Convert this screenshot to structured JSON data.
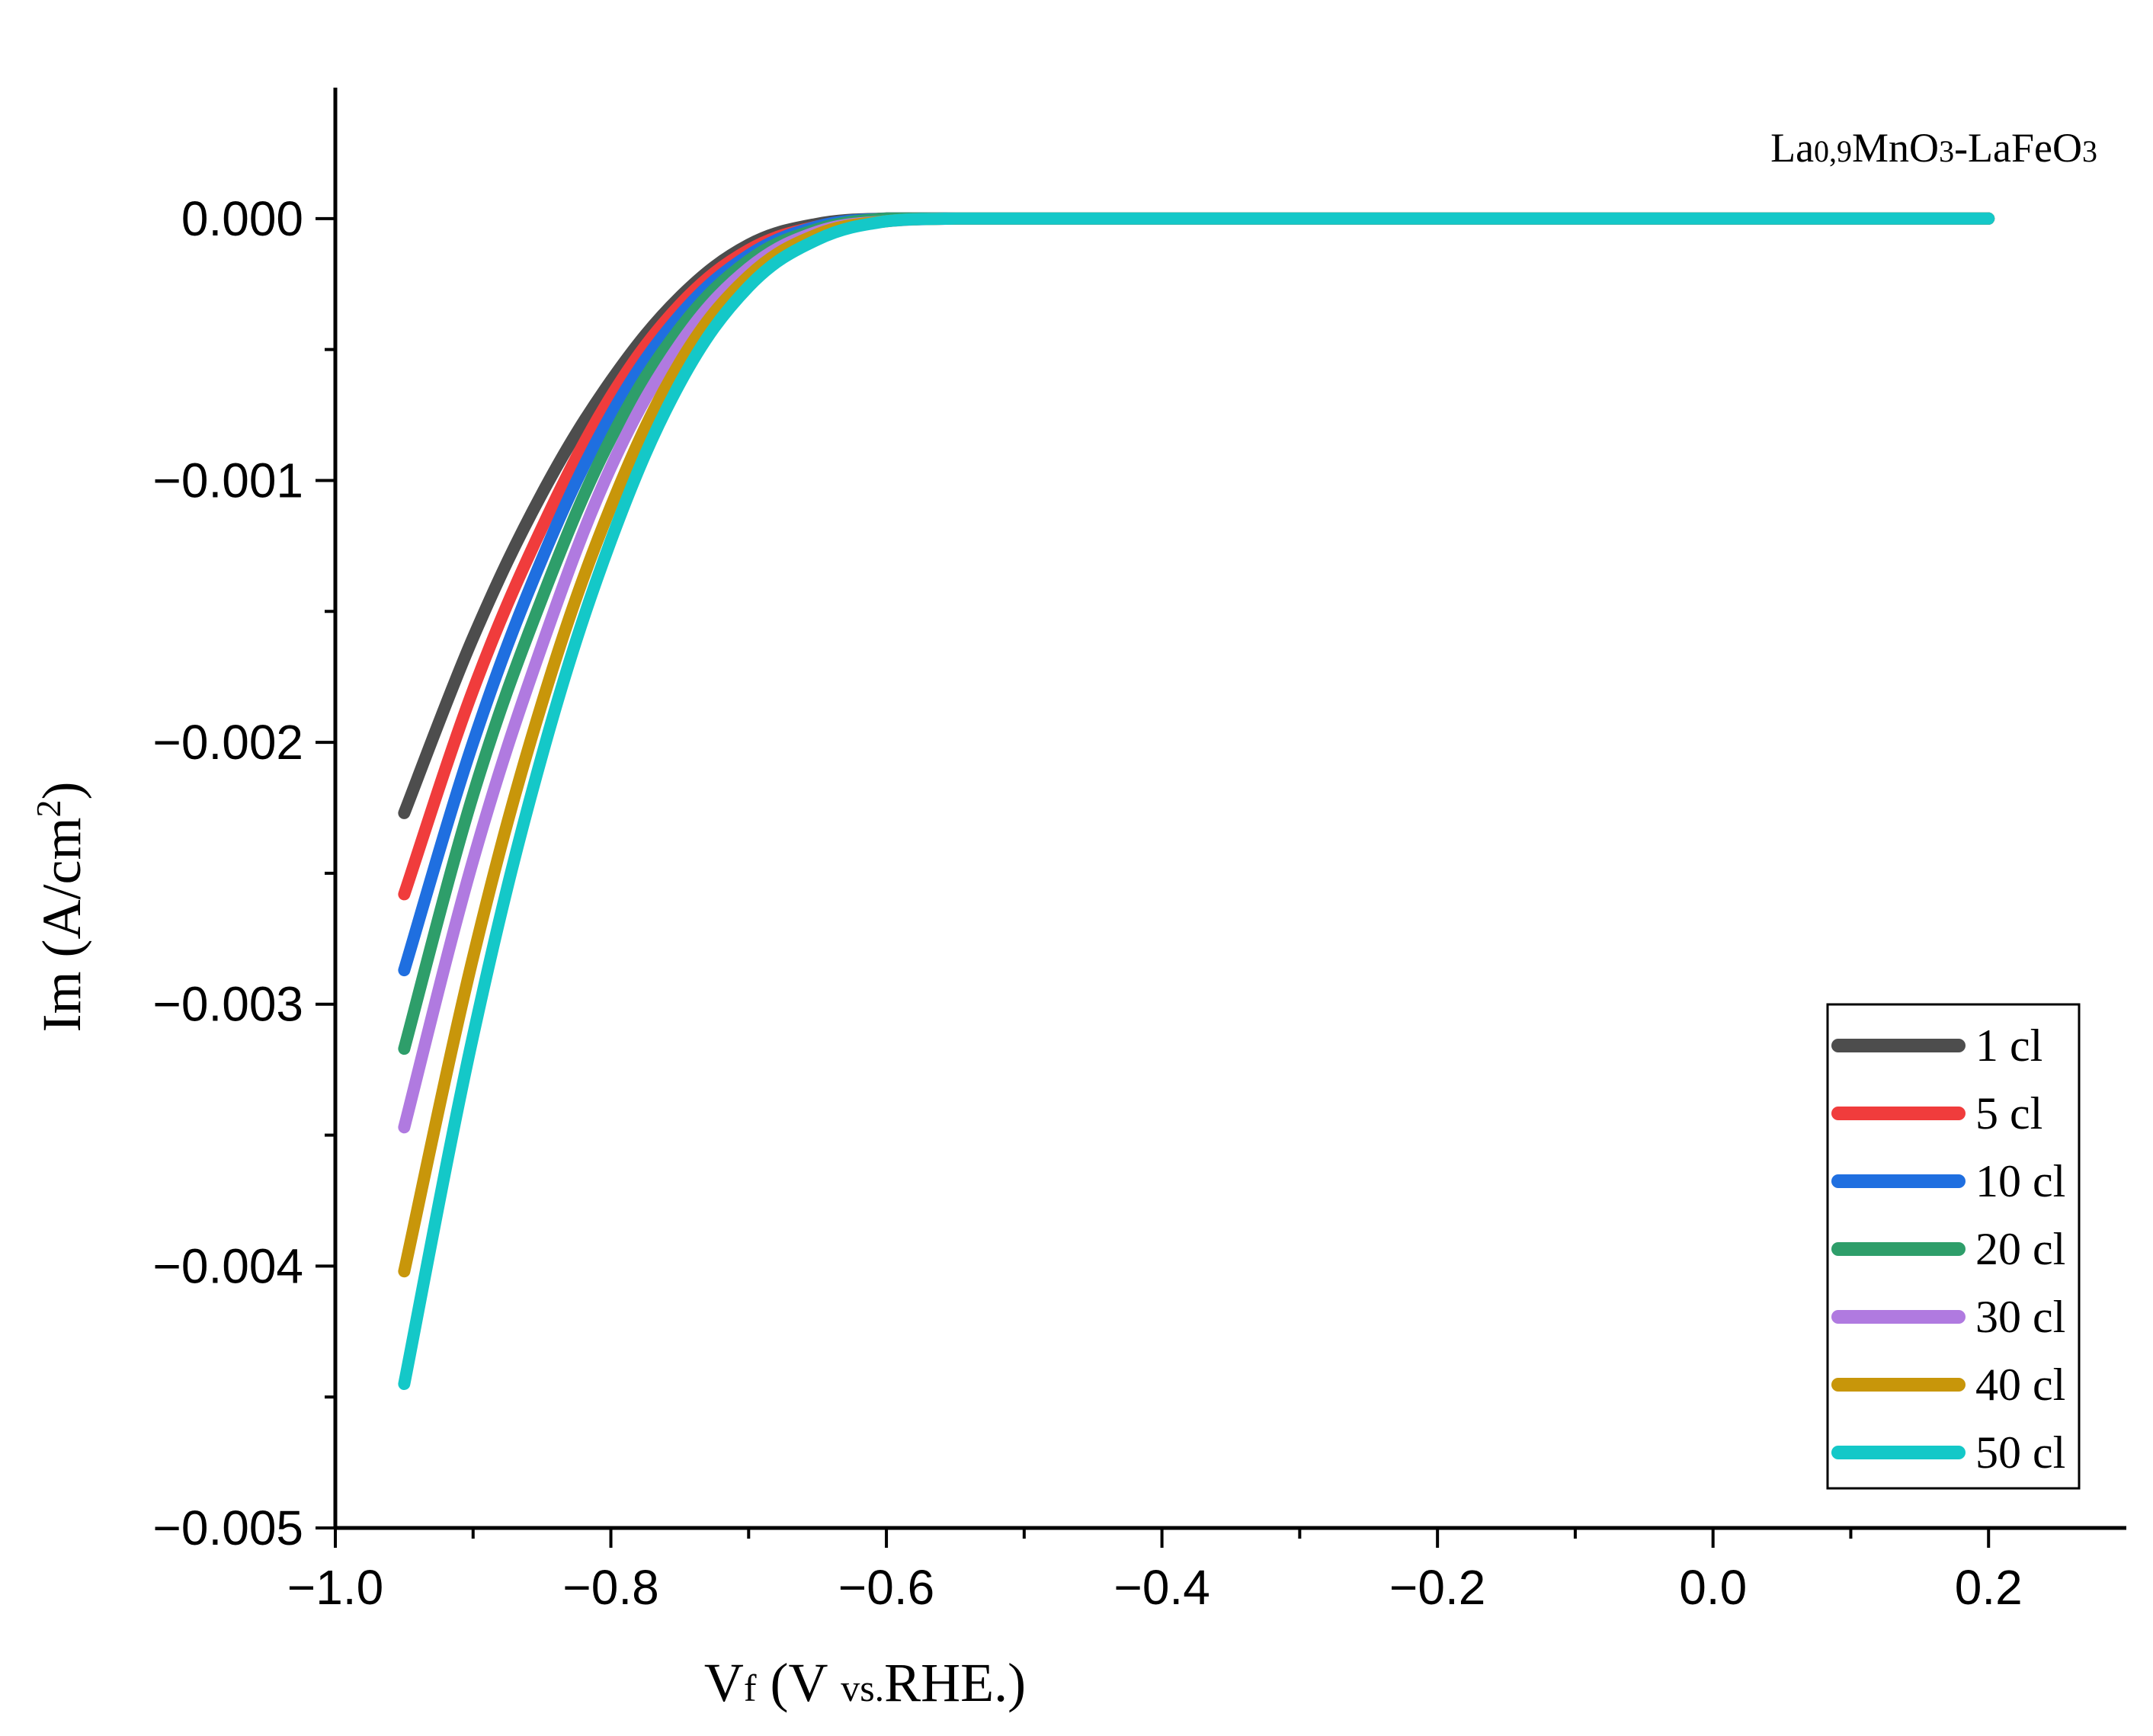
{
  "chart_data": {
    "type": "line",
    "xlabel": {
      "main": "V",
      "sub": "f",
      "paren_open": " (V ",
      "paren_sub": "vs.",
      "paren_rest": "RHE.)"
    },
    "ylabel": {
      "main": "Im (A/cm",
      "sup": "2",
      "close": ")"
    },
    "annotation": {
      "p1": "La",
      "s1": "0,9",
      "p2": "MnO",
      "s2": "3",
      "p3": "-LaFeO",
      "s3": "3"
    },
    "xlim": [
      -1.0,
      0.3
    ],
    "ylim": [
      -0.005,
      0.0005
    ],
    "xticks": [
      -1.0,
      -0.8,
      -0.6,
      -0.4,
      -0.2,
      0.0,
      0.2
    ],
    "xtick_labels": [
      "−1.0",
      "−0.8",
      "−0.6",
      "−0.4",
      "−0.2",
      "0.0",
      "0.2"
    ],
    "yticks": [
      0.0,
      -0.001,
      -0.002,
      -0.003,
      -0.004,
      -0.005
    ],
    "ytick_labels": [
      "0.000",
      "−0.001",
      "−0.002",
      "−0.003",
      "−0.004",
      "−0.005"
    ],
    "x": [
      -0.95,
      -0.9,
      -0.85,
      -0.8,
      -0.75,
      -0.7,
      -0.65,
      -0.6,
      -0.55,
      -0.5,
      -0.4,
      -0.2,
      0.0,
      0.2
    ],
    "series": [
      {
        "name": "1 cl",
        "color": "#4d4d4d",
        "values": [
          -0.00227,
          -0.0016,
          -0.00105,
          -0.00062,
          -0.0003,
          -0.0001,
          -2e-05,
          0.0,
          0.0,
          0.0,
          0.0,
          0.0,
          0.0,
          0.0
        ]
      },
      {
        "name": "5 cl",
        "color": "#f03c3c",
        "values": [
          -0.00258,
          -0.0018,
          -0.00118,
          -0.00068,
          -0.00033,
          -0.00012,
          -3e-05,
          0.0,
          0.0,
          0.0,
          0.0,
          0.0,
          0.0,
          0.0
        ]
      },
      {
        "name": "10 cl",
        "color": "#1f6fe0",
        "values": [
          -0.00287,
          -0.002,
          -0.0013,
          -0.00075,
          -0.00037,
          -0.00014,
          -3e-05,
          0.0,
          0.0,
          0.0,
          0.0,
          0.0,
          0.0,
          0.0
        ]
      },
      {
        "name": "20 cl",
        "color": "#2e9e6a",
        "values": [
          -0.00317,
          -0.0022,
          -0.00145,
          -0.00084,
          -0.00042,
          -0.00016,
          -4e-05,
          0.0,
          0.0,
          0.0,
          0.0,
          0.0,
          0.0,
          0.0
        ]
      },
      {
        "name": "30 cl",
        "color": "#b07ae0",
        "values": [
          -0.00347,
          -0.00245,
          -0.00163,
          -0.00095,
          -0.00048,
          -0.00019,
          -5e-05,
          -1e-05,
          0.0,
          0.0,
          0.0,
          0.0,
          0.0,
          0.0
        ]
      },
      {
        "name": "40 cl",
        "color": "#c8960a",
        "values": [
          -0.00402,
          -0.00282,
          -0.00185,
          -0.0011,
          -0.00055,
          -0.00022,
          -6e-05,
          -1e-05,
          0.0,
          0.0,
          0.0,
          0.0,
          0.0,
          0.0
        ]
      },
      {
        "name": "50 cl",
        "color": "#14c8c8",
        "values": [
          -0.00445,
          -0.00312,
          -0.00205,
          -0.00123,
          -0.00063,
          -0.00026,
          -8e-05,
          -1e-05,
          0.0,
          0.0,
          0.0,
          0.0,
          0.0,
          0.0
        ]
      }
    ],
    "legend_position": "bottom-right",
    "grid": false
  }
}
